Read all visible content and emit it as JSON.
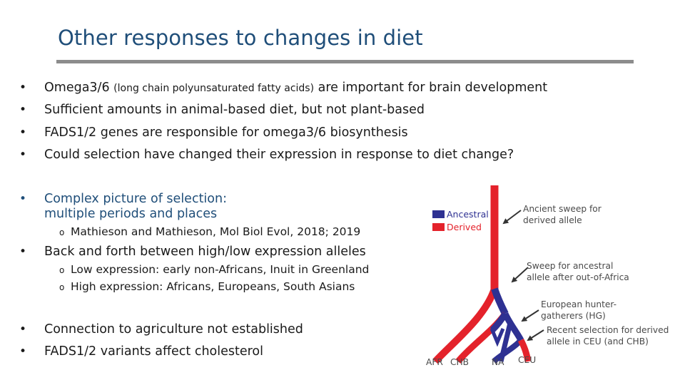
{
  "slide": {
    "title": "Other responses to changes in diet",
    "bullets_top": [
      {
        "pre": "Omega3/6 ",
        "small": "(long chain polyunsaturated fatty acids)",
        "post": " are important for brain development"
      },
      {
        "text": "Sufficient amounts in animal-based diet, but not plant-based"
      },
      {
        "text": "FADS1/2 genes are responsible for omega3/6 biosynthesis"
      },
      {
        "text": "Could selection have changed their expression in response to diet change?"
      }
    ],
    "complex": {
      "line1": "Complex picture of selection:",
      "line2": "multiple periods and places",
      "sub": "Mathieson and Mathieson, Mol Biol Evol, 2018; 2019"
    },
    "back_forth": {
      "text": "Back and forth between high/low expression alleles",
      "subs": [
        "Low expression: early non-Africans, Inuit in Greenland",
        "High expression: Africans, Europeans, South Asians"
      ]
    },
    "bottom_bullets": [
      "Connection to agriculture not established",
      "FADS1/2 variants affect cholesterol"
    ]
  },
  "diagram": {
    "legend": [
      {
        "label": "Ancestral",
        "color": "#2e3192"
      },
      {
        "label": "Derived",
        "color": "#e4222b"
      }
    ],
    "annotations": {
      "ancient_1": "Ancient sweep for",
      "ancient_2": "derived allele",
      "sweep_1": "Sweep for ancestral",
      "sweep_2": "allele after out-of-Africa",
      "euro_1": "European hunter-",
      "euro_2": "gatherers (HG)",
      "recent_1": "Recent selection for derived",
      "recent_2": "allele in CEU (and CHB)"
    },
    "populations": [
      "AFR",
      "CHB",
      "NA",
      "CEU"
    ]
  }
}
